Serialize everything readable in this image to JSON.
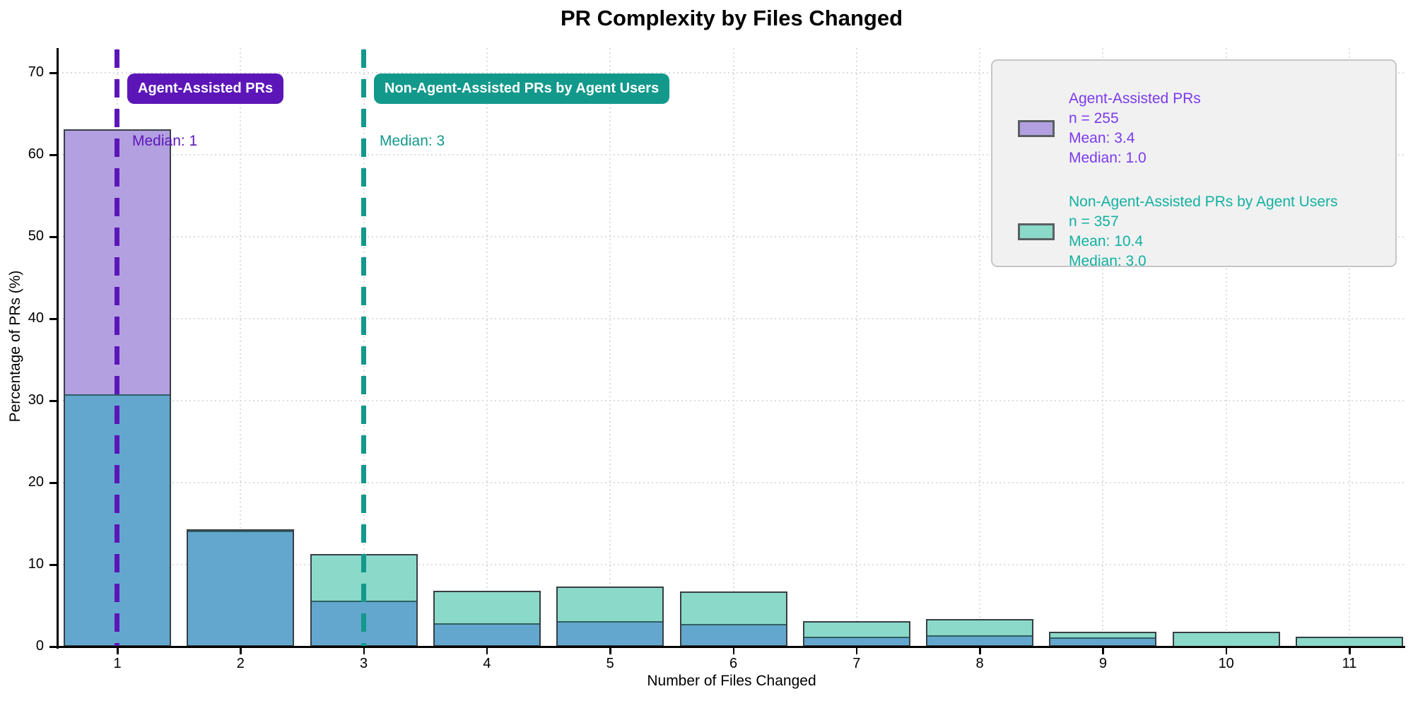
{
  "title": "PR Complexity by Files Changed",
  "axes": {
    "x_label": "Number of Files Changed",
    "y_label": "Percentage of PRs (%)",
    "x_ticks": [
      "1",
      "2",
      "3",
      "4",
      "5",
      "6",
      "7",
      "8",
      "9",
      "10",
      "11"
    ],
    "y_ticks": [
      0,
      10,
      20,
      30,
      40,
      50,
      60,
      70
    ]
  },
  "annotations": {
    "agent_badge_label": "Agent-Assisted PRs",
    "agent_median_label": "Median: 1",
    "nonagent_badge_label": "Non-Agent-Assisted PRs by Agent Users",
    "nonagent_median_label": "Median: 3"
  },
  "legend": {
    "agent": {
      "title": "Agent-Assisted PRs",
      "n": "n = 255",
      "mean": "Mean: 3.4",
      "median": "Median: 1.0"
    },
    "nonagent": {
      "title": "Non-Agent-Assisted PRs by Agent Users",
      "n": "n = 357",
      "mean": "Mean: 10.4",
      "median": "Median: 3.0"
    }
  },
  "colors": {
    "agent_fill": "#b3a0e0",
    "nonagent_fill": "#8bd9c8",
    "overlap_fill": "#63a7ce",
    "bar_edge": "#383f44",
    "segment_divider": "#2f5f62",
    "agent_accent": "#5c16b8",
    "agent_legend_text": "#7c3aed",
    "nonagent_accent": "#12998c",
    "nonagent_legend_text": "#13b1a0",
    "grid": "#dcdcdc",
    "legend_bg": "#f1f1f2",
    "legend_border": "#c6c6c6"
  },
  "chart_data": {
    "type": "bar",
    "subtype": "overlaid-histogram",
    "title": "PR Complexity by Files Changed",
    "xlabel": "Number of Files Changed",
    "ylabel": "Percentage of PRs (%)",
    "categories": [
      1,
      2,
      3,
      4,
      5,
      6,
      7,
      8,
      9,
      10,
      11
    ],
    "series": [
      {
        "name": "Agent-Assisted PRs",
        "n": 255,
        "mean": 3.4,
        "median": 1.0,
        "color": "#b3a0e0",
        "values": [
          63.1,
          14.1,
          5.6,
          2.8,
          3.1,
          2.7,
          1.2,
          1.3,
          1.1,
          0,
          0
        ]
      },
      {
        "name": "Non-Agent-Assisted PRs by Agent Users",
        "n": 357,
        "mean": 10.4,
        "median": 3.0,
        "color": "#8bd9c8",
        "values": [
          30.7,
          14.3,
          11.3,
          6.8,
          7.3,
          6.7,
          3.1,
          3.4,
          1.8,
          1.8,
          1.2
        ]
      }
    ],
    "overlap_color": "#63a7ce",
    "median_lines": [
      {
        "x": 1,
        "label": "Median: 1",
        "series": "Agent-Assisted PRs",
        "color": "#5c16b8",
        "style": "dashed"
      },
      {
        "x": 3,
        "label": "Median: 3",
        "series": "Non-Agent-Assisted PRs by Agent Users",
        "color": "#12998c",
        "style": "dashed"
      }
    ],
    "ylim": [
      0,
      72.5
    ],
    "grid": "dotted, both axes",
    "legend_position": "upper right"
  }
}
